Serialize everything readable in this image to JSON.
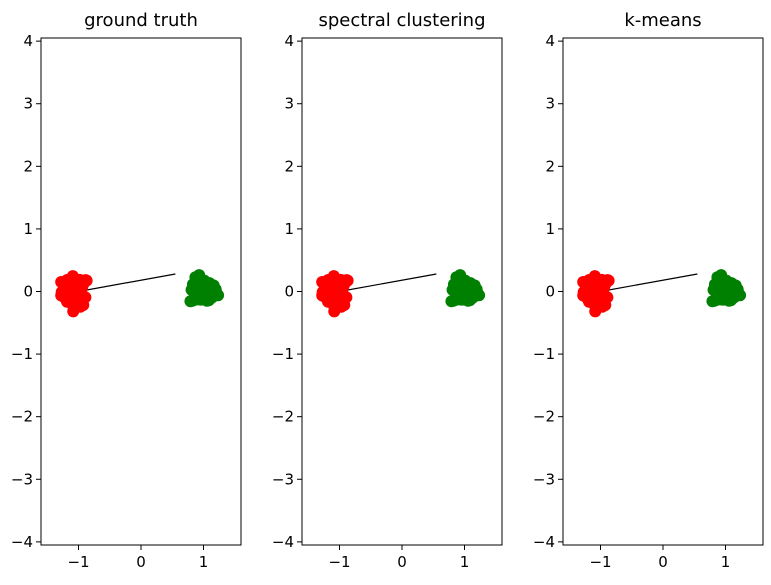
{
  "chart_data": [
    {
      "type": "scatter",
      "title": "ground truth",
      "xlim": [
        -1.6,
        1.6
      ],
      "ylim": [
        -4.05,
        4.05
      ],
      "xticks": [
        -1,
        0,
        1
      ],
      "yticks": [
        -4,
        -3,
        -2,
        -1,
        0,
        1,
        2,
        3,
        4
      ],
      "xtick_labels": [
        "−1",
        "0",
        "1"
      ],
      "ytick_labels": [
        "−4",
        "−3",
        "−2",
        "−1",
        "0",
        "1",
        "2",
        "3",
        "4"
      ],
      "grid": false,
      "clusters": [
        {
          "label_color": "#ff0000",
          "center": [
            -1.05,
            0.0
          ],
          "spread": [
            0.2,
            0.22
          ],
          "count": 60
        },
        {
          "label_color": "#008000",
          "center": [
            1.0,
            0.0
          ],
          "spread": [
            0.2,
            0.19
          ],
          "count": 60
        }
      ],
      "edges": [
        [
          [
            -1.0,
            0.0
          ],
          [
            0.55,
            0.28
          ]
        ]
      ]
    },
    {
      "type": "scatter",
      "title": "spectral clustering",
      "xlim": [
        -1.6,
        1.6
      ],
      "ylim": [
        -4.05,
        4.05
      ],
      "xticks": [
        -1,
        0,
        1
      ],
      "yticks": [
        -4,
        -3,
        -2,
        -1,
        0,
        1,
        2,
        3,
        4
      ],
      "xtick_labels": [
        "−1",
        "0",
        "1"
      ],
      "ytick_labels": [
        "−4",
        "−3",
        "−2",
        "−1",
        "0",
        "1",
        "2",
        "3",
        "4"
      ],
      "grid": false,
      "clusters": [
        {
          "label_color": "#ff0000",
          "center": [
            -1.05,
            0.0
          ],
          "spread": [
            0.2,
            0.22
          ],
          "count": 60
        },
        {
          "label_color": "#008000",
          "center": [
            1.0,
            0.0
          ],
          "spread": [
            0.2,
            0.19
          ],
          "count": 60
        }
      ],
      "edges": [
        [
          [
            -1.0,
            0.0
          ],
          [
            0.55,
            0.28
          ]
        ]
      ]
    },
    {
      "type": "scatter",
      "title": "k-means",
      "xlim": [
        -1.6,
        1.6
      ],
      "ylim": [
        -4.05,
        4.05
      ],
      "xticks": [
        -1,
        0,
        1
      ],
      "yticks": [
        -4,
        -3,
        -2,
        -1,
        0,
        1,
        2,
        3,
        4
      ],
      "xtick_labels": [
        "−1",
        "0",
        "1"
      ],
      "ytick_labels": [
        "−4",
        "−3",
        "−2",
        "−1",
        "0",
        "1",
        "2",
        "3",
        "4"
      ],
      "grid": false,
      "clusters": [
        {
          "label_color": "#ff0000",
          "center": [
            -1.05,
            0.0
          ],
          "spread": [
            0.2,
            0.22
          ],
          "count": 60
        },
        {
          "label_color": "#008000",
          "center": [
            1.0,
            0.0
          ],
          "spread": [
            0.2,
            0.19
          ],
          "count": 60
        }
      ],
      "edges": [
        [
          [
            -1.0,
            0.0
          ],
          [
            0.55,
            0.28
          ]
        ]
      ]
    }
  ]
}
